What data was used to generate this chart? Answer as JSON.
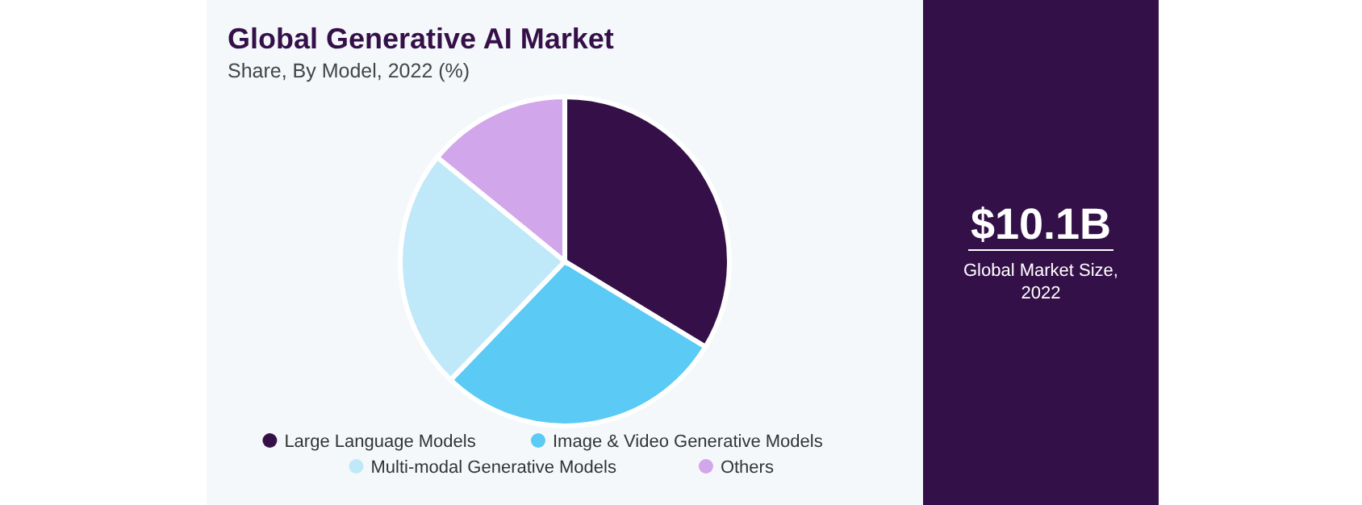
{
  "chart_data": [
    {
      "type": "pie",
      "title": "Global Generative AI Market",
      "subtitle": "Share, By Model, 2022 (%)",
      "categories": [
        "Large Language Models",
        "Image & Video Generative Models",
        "Multi-modal Generative Models",
        "Others"
      ],
      "values": [
        33.7,
        28.5,
        23.7,
        14.1
      ],
      "colors": [
        "#351048",
        "#5bcaf5",
        "#bfe9f9",
        "#d2a6ea"
      ],
      "legend": "bottom"
    },
    {
      "type": "other",
      "title": "$10.1B",
      "subtitle": "Global Market Size, 2022"
    }
  ]
}
